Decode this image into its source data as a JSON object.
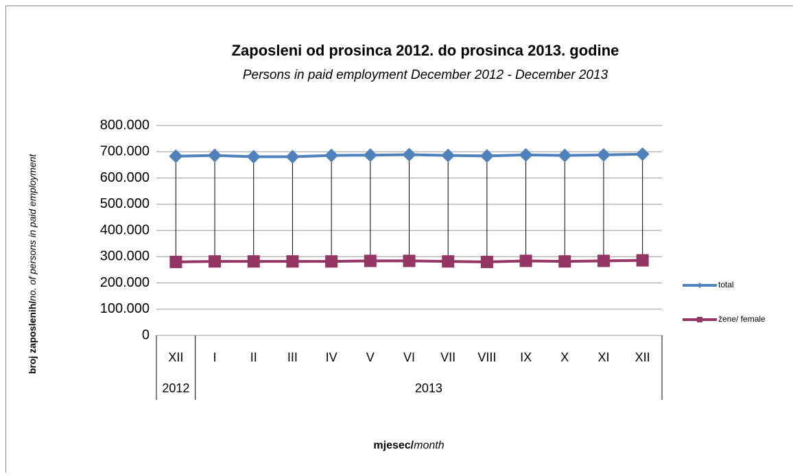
{
  "chart_data": {
    "type": "line",
    "title": "Zaposleni od prosinca 2012. do prosinca 2013. godine",
    "subtitle": "Persons in paid employment December 2012 - December 2013",
    "y_label": {
      "bold": "broj zaposlenih/",
      "italic": "no. of persons in paid employment"
    },
    "x_label": {
      "bold": "mjesec/",
      "italic": "month"
    },
    "categories": [
      "XII",
      "I",
      "II",
      "III",
      "IV",
      "V",
      "VI",
      "VII",
      "VIII",
      "IX",
      "X",
      "XI",
      "XII"
    ],
    "category_groups": [
      {
        "label": "2012",
        "span": 1
      },
      {
        "label": "2013",
        "span": 12
      }
    ],
    "series": [
      {
        "name": "total",
        "color": "#4f81bd",
        "marker": "diamond",
        "values": [
          683000,
          686000,
          681000,
          681000,
          686000,
          687000,
          689000,
          686000,
          684000,
          688000,
          686000,
          688000,
          691000
        ]
      },
      {
        "name": "žene/ female",
        "color": "#953563",
        "marker": "square",
        "values": [
          280000,
          282000,
          282000,
          282000,
          282000,
          284000,
          284000,
          282000,
          280000,
          284000,
          282000,
          284000,
          286000
        ]
      }
    ],
    "ylim": [
      0,
      800000
    ],
    "yticks": [
      0,
      {
        "value": 100000,
        "label": "100.000"
      },
      {
        "value": 200000,
        "label": "200.000"
      },
      {
        "value": 300000,
        "label": "300.000"
      },
      {
        "value": 400000,
        "label": "400.000"
      },
      {
        "value": 500000,
        "label": "500.000"
      },
      {
        "value": 600000,
        "label": "600.000"
      },
      {
        "value": 700000,
        "label": "700.000"
      },
      {
        "value": 800000,
        "label": "800.000"
      }
    ],
    "grid": true,
    "drop_lines": true,
    "legend": "right"
  }
}
